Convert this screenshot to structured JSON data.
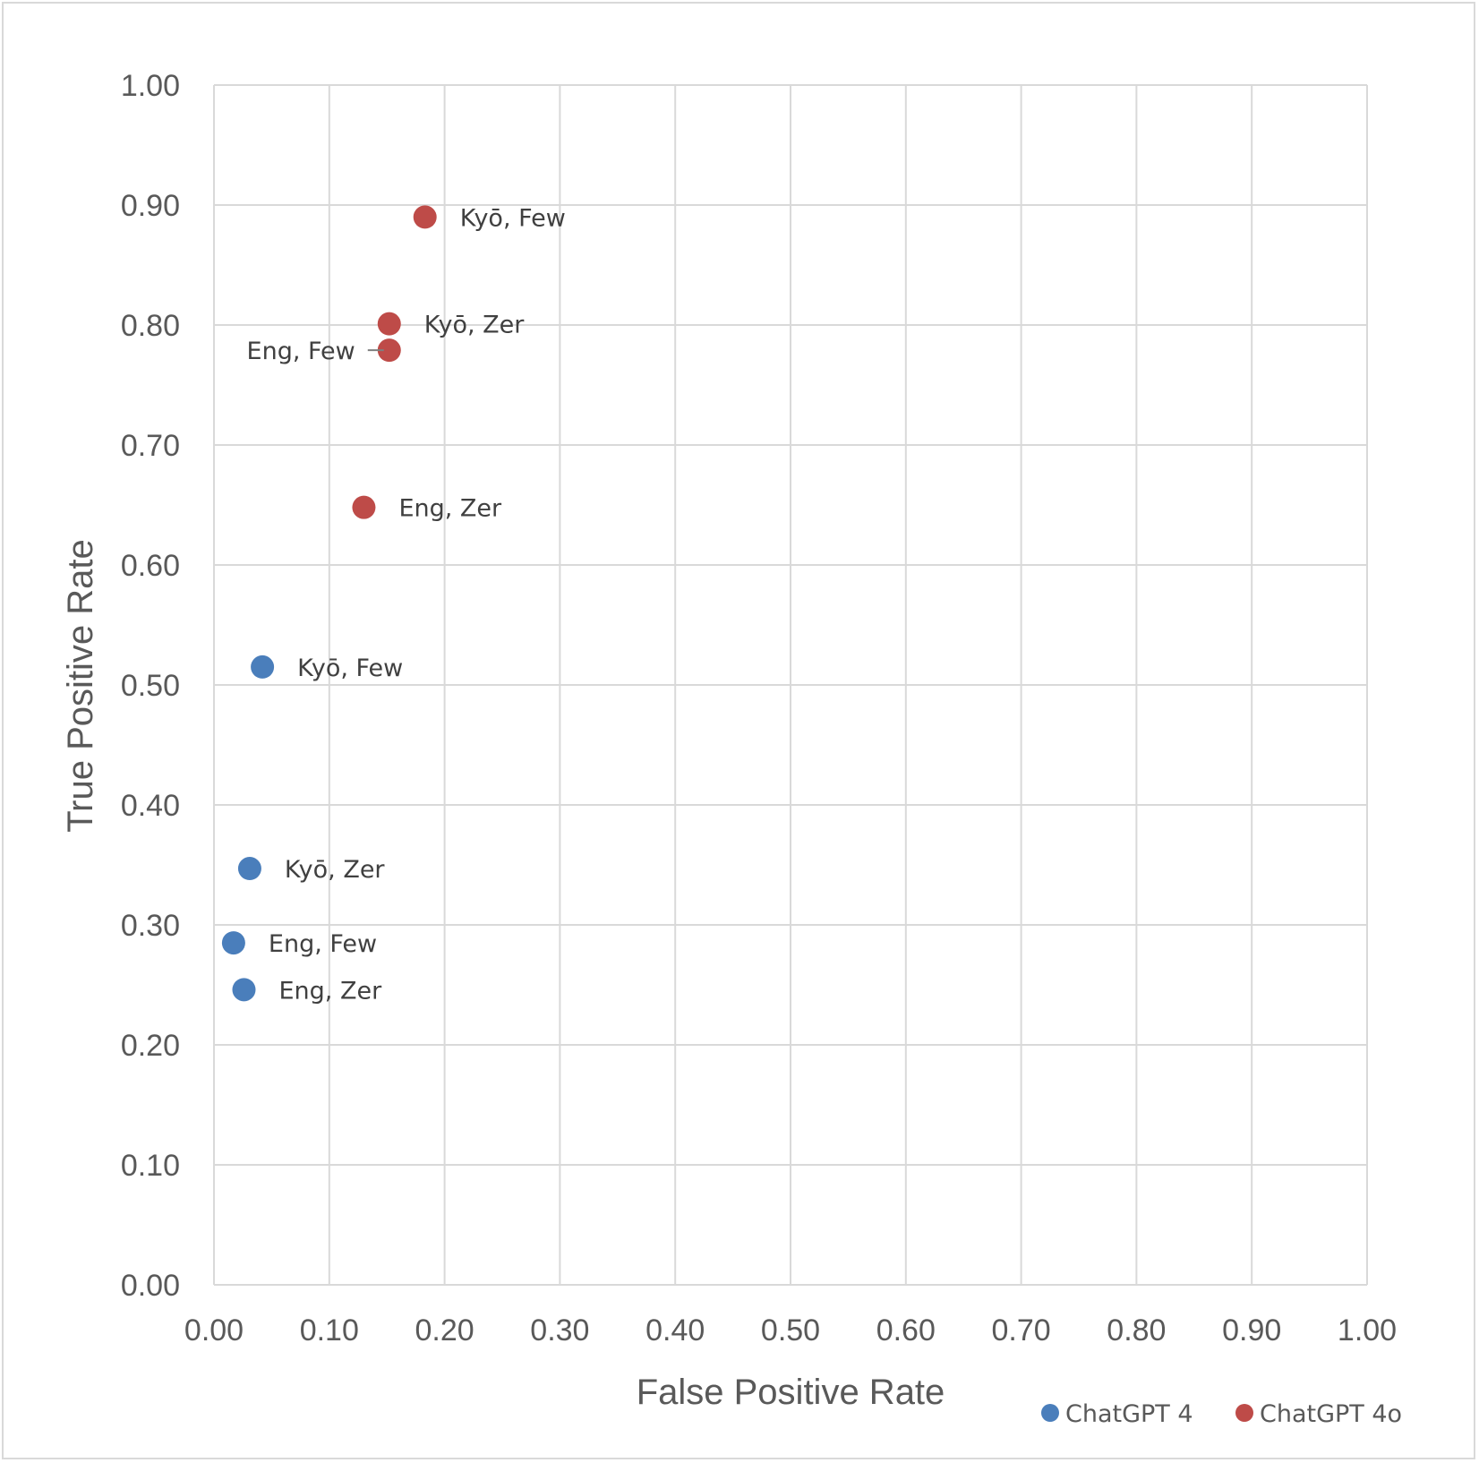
{
  "chart_data": {
    "type": "scatter",
    "xlabel": "False Positive Rate",
    "ylabel": "True Positive Rate",
    "xlim": [
      0,
      1
    ],
    "ylim": [
      0,
      1
    ],
    "x_ticks": [
      "0.00",
      "0.10",
      "0.20",
      "0.30",
      "0.40",
      "0.50",
      "0.60",
      "0.70",
      "0.80",
      "0.90",
      "1.00"
    ],
    "y_ticks": [
      "0.00",
      "0.10",
      "0.20",
      "0.30",
      "0.40",
      "0.50",
      "0.60",
      "0.70",
      "0.80",
      "0.90",
      "1.00"
    ],
    "grid": true,
    "legend_position": "bottom-right",
    "series": [
      {
        "name": "ChatGPT 4",
        "color": "#4a7ebb",
        "points": [
          {
            "x": 0.042,
            "y": 0.515,
            "label": "Kyō, Few"
          },
          {
            "x": 0.031,
            "y": 0.347,
            "label": "Kyō, Zer"
          },
          {
            "x": 0.017,
            "y": 0.285,
            "label": "Eng, Few"
          },
          {
            "x": 0.026,
            "y": 0.246,
            "label": "Eng, Zer"
          }
        ]
      },
      {
        "name": "ChatGPT 4o",
        "color": "#be4b48",
        "points": [
          {
            "x": 0.183,
            "y": 0.89,
            "label": "Kyō, Few"
          },
          {
            "x": 0.152,
            "y": 0.801,
            "label": "Kyō, Zer"
          },
          {
            "x": 0.152,
            "y": 0.779,
            "label": "Eng, Few",
            "label_side": "left"
          },
          {
            "x": 0.13,
            "y": 0.648,
            "label": "Eng, Zer"
          }
        ]
      }
    ]
  }
}
